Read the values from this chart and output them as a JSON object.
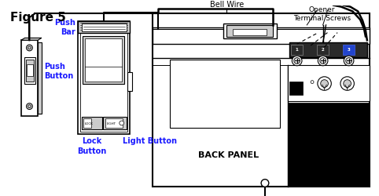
{
  "title": "Figure 5",
  "labels": {
    "push_button": "Push\nButton",
    "push_bar": "Push\nBar",
    "bell_wire": "Bell Wire",
    "opener_terminal": "Opener\nTerminal Screws",
    "back_panel": "BACK PANEL",
    "lock_button": "Lock\nButton",
    "light_button": "Light Button"
  },
  "colors": {
    "background": "#ffffff",
    "black": "#000000",
    "blue_label": "#1a1aff",
    "gray_light": "#cccccc",
    "gray_mid": "#999999",
    "terminal_dark": "#333333",
    "terminal_blue": "#2244cc"
  }
}
